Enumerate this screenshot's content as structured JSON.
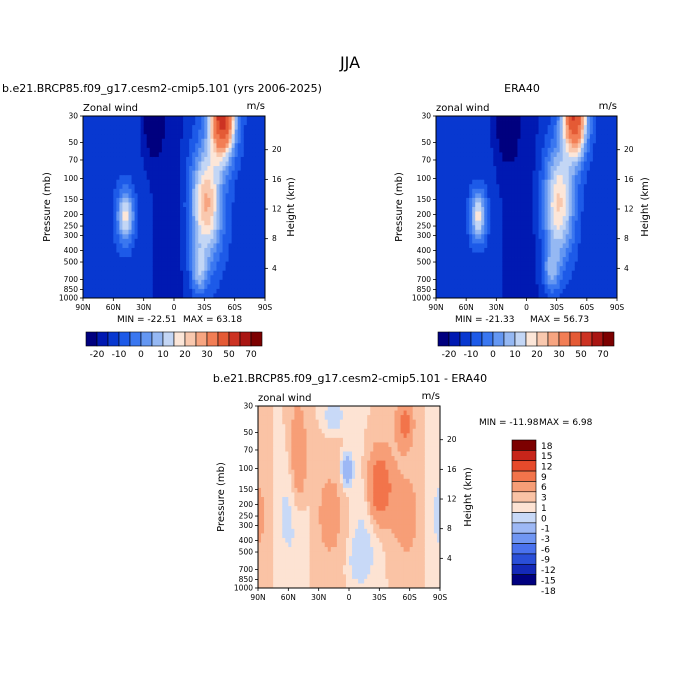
{
  "figure": {
    "season": "JJA"
  },
  "colorbars": {
    "abs": {
      "colors": [
        "#00007f",
        "#0019b2",
        "#0838d0",
        "#1d5ae8",
        "#3a77f0",
        "#6497f2",
        "#95b8f3",
        "#c3d6f5",
        "#fce6d8",
        "#f9c8ae",
        "#f7a581",
        "#f27e55",
        "#e45a35",
        "#cc3222",
        "#a91512",
        "#7c0000"
      ],
      "labels": [
        "-20",
        "-10",
        "0",
        "10",
        "20",
        "30",
        "50",
        "70"
      ]
    },
    "diff": {
      "colors": [
        "#00007f",
        "#1429b8",
        "#2a4fd8",
        "#4a72ee",
        "#7096f3",
        "#9db8f5",
        "#c8d9f7",
        "#fde3d3",
        "#fac3a5",
        "#f79e77",
        "#f2744b",
        "#e64a2b",
        "#c7251a",
        "#7c0000"
      ],
      "labels": [
        "18",
        "15",
        "12",
        "9",
        "6",
        "3",
        "1",
        "0",
        "-1",
        "-3",
        "-6",
        "-9",
        "-12",
        "-15",
        "-18"
      ]
    }
  },
  "chart_data": [
    {
      "type": "heatmap",
      "title": "b.e21.BRCP85.f09_g17.cesm2-cmip5.101 (yrs 2006-2025)",
      "subtitle_left": "Zonal wind",
      "subtitle_right": "m/s",
      "xlabel": "",
      "ylabel": "Pressure (mb)",
      "y2label": "Height (km)",
      "x_ticks": [
        "90N",
        "60N",
        "30N",
        "0",
        "30S",
        "60S",
        "90S"
      ],
      "y_ticks": [
        "30",
        "50",
        "70",
        "100",
        "150",
        "200",
        "250",
        "300",
        "400",
        "500",
        "700",
        "850",
        "1000"
      ],
      "y2_ticks": [
        "20",
        "16",
        "12",
        "8",
        "4"
      ],
      "min_label": "MIN = -22.51",
      "max_label": "MAX = 63.18",
      "min": -22.51,
      "max": 63.18,
      "features": [
        {
          "x": 15,
          "y": 0.15,
          "v": 70,
          "w": 12,
          "h": 0.22
        },
        {
          "x": 35,
          "y": 0.45,
          "v": 40,
          "w": 15,
          "h": 0.35
        },
        {
          "x": -60,
          "y": 0.55,
          "v": 22,
          "w": 9,
          "h": 0.12
        },
        {
          "x": -30,
          "y": 0.08,
          "v": -22,
          "w": 9,
          "h": 0.12
        }
      ]
    },
    {
      "type": "heatmap",
      "title": "ERA40",
      "subtitle_left": "zonal wind",
      "subtitle_right": "m/s",
      "xlabel": "",
      "ylabel": "Pressure (mb)",
      "y2label": "Height (km)",
      "x_ticks": [
        "90N",
        "60N",
        "30N",
        "0",
        "30S",
        "60S",
        "90S"
      ],
      "y_ticks": [
        "30",
        "50",
        "70",
        "100",
        "150",
        "200",
        "250",
        "300",
        "400",
        "500",
        "700",
        "850",
        "1000"
      ],
      "y2_ticks": [
        "20",
        "16",
        "12",
        "8",
        "4"
      ],
      "min_label": "MIN = -21.33",
      "max_label": "MAX = 56.73",
      "min": -21.33,
      "max": 56.73
    },
    {
      "type": "heatmap",
      "title": "b.e21.BRCP85.f09_g17.cesm2-cmip5.101 - ERA40",
      "subtitle_left": "zonal wind",
      "subtitle_right": "m/s",
      "xlabel": "",
      "ylabel": "Pressure (mb)",
      "y2label": "Height (km)",
      "x_ticks": [
        "90N",
        "60N",
        "30N",
        "0",
        "30S",
        "60S",
        "90S"
      ],
      "y_ticks": [
        "30",
        "50",
        "70",
        "100",
        "150",
        "200",
        "250",
        "300",
        "400",
        "500",
        "700",
        "850",
        "1000"
      ],
      "y2_ticks": [
        "20",
        "16",
        "12",
        "8",
        "4"
      ],
      "min_label": "MIN = -11.98",
      "max_label": "MAX =   6.98",
      "min": -11.98,
      "max": 6.98
    }
  ]
}
